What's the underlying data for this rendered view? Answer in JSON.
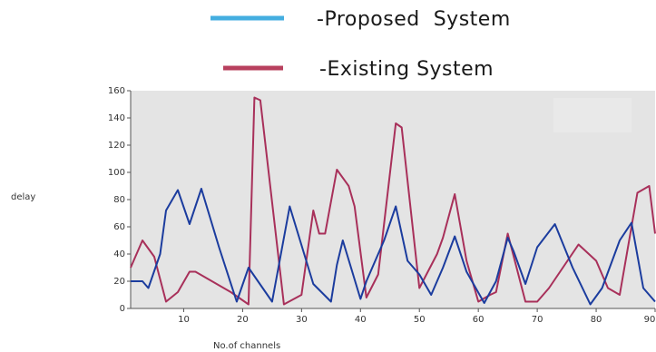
{
  "chart_data": {
    "type": "line",
    "xlabel": "No.of channels",
    "ylabel": "delay",
    "xlim": [
      1,
      90
    ],
    "ylim": [
      0,
      160
    ],
    "xticks": [
      10,
      20,
      30,
      40,
      50,
      60,
      70,
      80,
      90
    ],
    "yticks": [
      0,
      20,
      40,
      60,
      80,
      100,
      120,
      140,
      160
    ],
    "grid": false,
    "legend_position": "top",
    "series": [
      {
        "name": "-Proposed  System",
        "color": "#1b3c9e",
        "legend_color": "#44aee0",
        "x": [
          1,
          3,
          4,
          6,
          7,
          9,
          11,
          13,
          16,
          19,
          21,
          25,
          28,
          32,
          35,
          36,
          37,
          40,
          41,
          44,
          46,
          48,
          50,
          52,
          54,
          56,
          58,
          61,
          63,
          65,
          66,
          68,
          70,
          73,
          76,
          79,
          81,
          84,
          86,
          88,
          90
        ],
        "y": [
          20,
          20,
          15,
          40,
          72,
          87,
          62,
          88,
          45,
          5,
          30,
          5,
          75,
          18,
          5,
          32,
          50,
          7,
          20,
          50,
          75,
          35,
          25,
          10,
          30,
          53,
          27,
          4,
          20,
          52,
          42,
          18,
          45,
          62,
          30,
          3,
          15,
          50,
          63,
          15,
          5
        ]
      },
      {
        "name": "-Existing System",
        "color": "#a8305a",
        "legend_color": "#b8405e",
        "x": [
          1,
          3,
          5,
          7,
          9,
          11,
          12,
          18,
          21,
          22,
          23,
          27,
          30,
          32,
          33,
          34,
          36,
          38,
          39,
          41,
          43,
          46,
          47,
          50,
          53,
          54,
          56,
          58,
          60,
          62,
          63,
          65,
          68,
          70,
          72,
          77,
          80,
          82,
          84,
          87,
          89,
          90
        ],
        "y": [
          30,
          50,
          38,
          5,
          12,
          27,
          27,
          12,
          3,
          155,
          153,
          3,
          10,
          72,
          55,
          55,
          102,
          90,
          75,
          8,
          25,
          136,
          133,
          15,
          40,
          52,
          84,
          35,
          5,
          10,
          12,
          55,
          5,
          5,
          15,
          47,
          35,
          15,
          10,
          85,
          90,
          55
        ]
      }
    ]
  }
}
